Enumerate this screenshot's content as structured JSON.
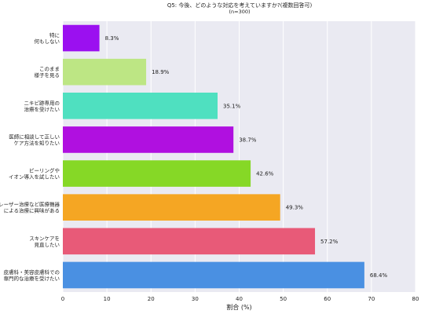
{
  "chart_data": {
    "type": "bar",
    "orientation": "horizontal",
    "title": "Q5: 今後、どのような対応を考えていますか?(複数回答可)",
    "subtitle": "(n=300)",
    "xlabel": "割合 (%)",
    "ylabel": "",
    "xlim": [
      0,
      80
    ],
    "xticks": [
      0,
      10,
      20,
      30,
      40,
      50,
      60,
      70,
      80
    ],
    "grid": true,
    "legend": "none",
    "value_suffix": "%",
    "categories": [
      [
        "特に",
        "何もしない"
      ],
      [
        "このまま",
        "様子を見る"
      ],
      [
        "ニキビ跡専用の",
        "治療を受けたい"
      ],
      [
        "医師に相談して正しい",
        "ケア方法を知りたい"
      ],
      [
        "ピーリングや",
        "イオン導入を試したい"
      ],
      [
        "レーザー治療など医療機器",
        "による治療に興味がある"
      ],
      [
        "スキンケアを",
        "見直したい"
      ],
      [
        "皮膚科・美容皮膚科での",
        "専門的な治療を受けたい"
      ]
    ],
    "values": [
      8.3,
      18.9,
      35.1,
      38.7,
      42.6,
      49.3,
      57.2,
      68.4
    ],
    "value_labels": [
      "8.3%",
      "18.9%",
      "35.1%",
      "38.7%",
      "42.6%",
      "49.3%",
      "57.2%",
      "68.4%"
    ],
    "colors": [
      "#9b10f0",
      "#bde684",
      "#4fe0c0",
      "#b010e0",
      "#86d826",
      "#f5a623",
      "#e85a78",
      "#4a90e2"
    ]
  }
}
